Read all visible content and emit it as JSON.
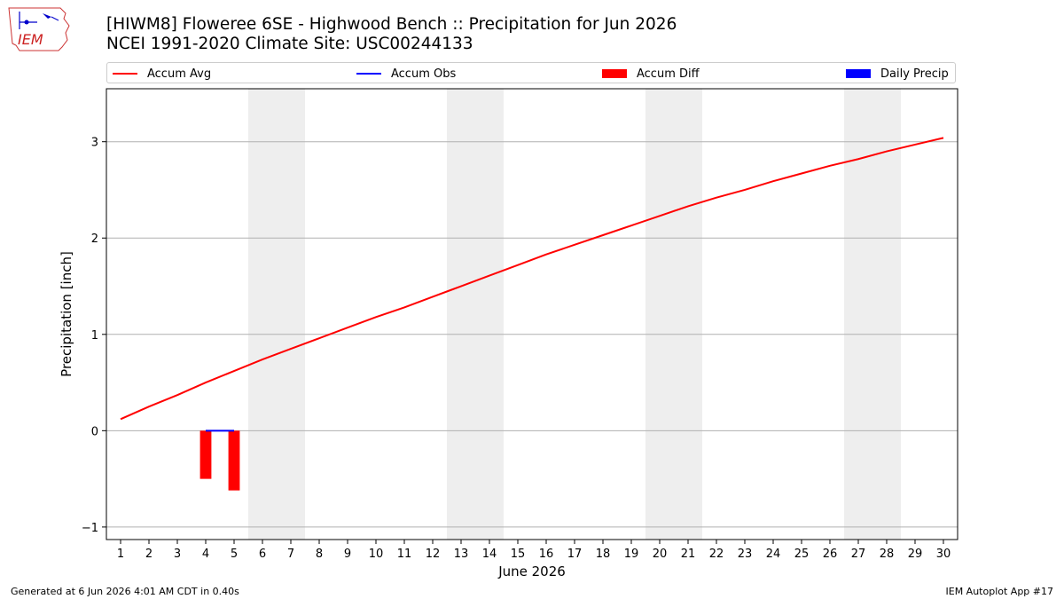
{
  "header": {
    "title_line1": "[HIWM8] Floweree 6SE - Highwood Bench :: Precipitation for Jun 2026",
    "title_line2": "NCEI 1991-2020 Climate Site: USC00244133",
    "logo_text": "IEM"
  },
  "footer": {
    "left": "Generated at 6 Jun 2026 4:01 AM CDT in 0.40s",
    "right": "IEM Autoplot App #17"
  },
  "colors": {
    "accum_avg": "#ff0000",
    "accum_obs": "#0000ff",
    "accum_diff": "#ff0000",
    "daily_precip": "#0000ff",
    "weekend_shade": "#eeeeee",
    "grid": "#b0b0b0"
  },
  "legend": {
    "items": [
      {
        "label": "Accum Avg",
        "kind": "line",
        "color": "#ff0000"
      },
      {
        "label": "Accum Obs",
        "kind": "line",
        "color": "#0000ff"
      },
      {
        "label": "Accum Diff",
        "kind": "patch",
        "color": "#ff0000"
      },
      {
        "label": "Daily Precip",
        "kind": "patch",
        "color": "#0000ff"
      }
    ]
  },
  "chart_data": {
    "type": "line",
    "xlabel": "June 2026",
    "ylabel": "Precipitation [inch]",
    "x": [
      1,
      2,
      3,
      4,
      5,
      6,
      7,
      8,
      9,
      10,
      11,
      12,
      13,
      14,
      15,
      16,
      17,
      18,
      19,
      20,
      21,
      22,
      23,
      24,
      25,
      26,
      27,
      28,
      29,
      30
    ],
    "xlim": [
      0.5,
      30.5
    ],
    "ylim": [
      -1.13,
      3.55
    ],
    "yticks": [
      -1,
      0,
      1,
      2,
      3
    ],
    "grid": "y-axis on",
    "legend_position": "top",
    "weekend_spans": [
      [
        5.5,
        7.5
      ],
      [
        12.5,
        14.5
      ],
      [
        19.5,
        21.5
      ],
      [
        26.5,
        28.5
      ]
    ],
    "series": [
      {
        "name": "Accum Avg",
        "kind": "line",
        "x": [
          1,
          2,
          3,
          4,
          5,
          6,
          7,
          8,
          9,
          10,
          11,
          12,
          13,
          14,
          15,
          16,
          17,
          18,
          19,
          20,
          21,
          22,
          23,
          24,
          25,
          26,
          27,
          28,
          29,
          30
        ],
        "values": [
          0.12,
          0.25,
          0.37,
          0.5,
          0.62,
          0.74,
          0.85,
          0.96,
          1.07,
          1.18,
          1.28,
          1.39,
          1.5,
          1.61,
          1.72,
          1.83,
          1.93,
          2.03,
          2.13,
          2.23,
          2.33,
          2.42,
          2.5,
          2.59,
          2.67,
          2.75,
          2.82,
          2.9,
          2.97,
          3.04
        ]
      },
      {
        "name": "Accum Obs",
        "kind": "line",
        "x": [
          4,
          5
        ],
        "values": [
          0.0,
          0.0
        ]
      },
      {
        "name": "Accum Diff",
        "kind": "bar",
        "x": [
          4,
          5
        ],
        "values": [
          -0.5,
          -0.62
        ]
      },
      {
        "name": "Daily Precip",
        "kind": "bar",
        "x": [
          4,
          5
        ],
        "values": [
          0.0,
          0.0
        ]
      }
    ]
  }
}
